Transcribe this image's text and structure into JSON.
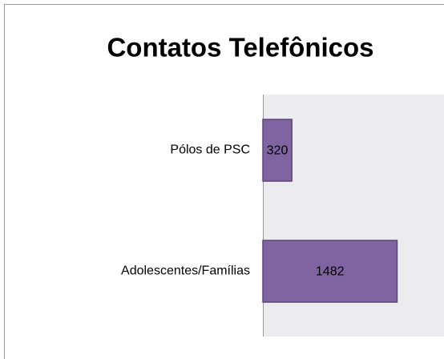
{
  "chart_data": {
    "type": "hbar",
    "title": "Contatos Telefônicos",
    "categories": [
      "Pólos de PSC",
      "Adolescentes/Famílias"
    ],
    "values": [
      320,
      1482
    ],
    "color": "#8064a2",
    "xlim": [
      0,
      2000
    ]
  }
}
